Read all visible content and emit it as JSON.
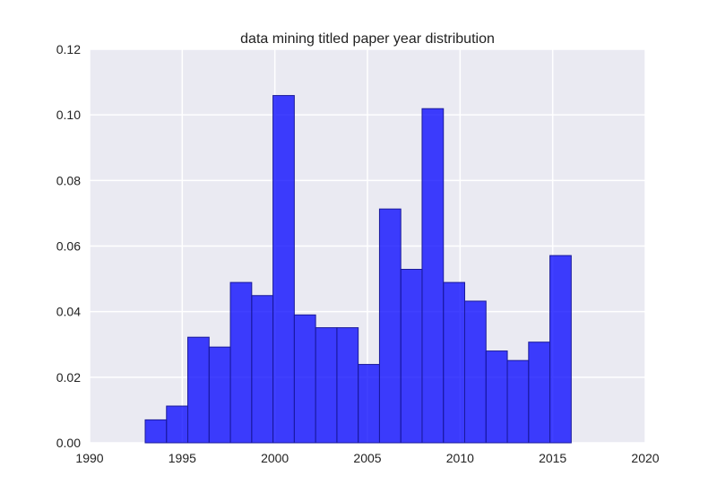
{
  "chart_data": {
    "type": "bar",
    "title": "data mining titled paper year distribution",
    "xlabel": "",
    "ylabel": "",
    "xlim": [
      1990,
      2020
    ],
    "ylim": [
      0,
      0.12
    ],
    "x_ticks": [
      "1990",
      "1995",
      "2000",
      "2005",
      "2010",
      "2015",
      "2020"
    ],
    "y_ticks": [
      "0.00",
      "0.02",
      "0.04",
      "0.06",
      "0.08",
      "0.10",
      "0.12"
    ],
    "grid": true,
    "bin_edges": [
      1993,
      1994.15,
      1995.3,
      1996.45,
      1997.6,
      1998.75,
      1999.9,
      2001.05,
      2002.2,
      2003.35,
      2004.5,
      2005.65,
      2006.8,
      2007.95,
      2009.1,
      2010.25,
      2011.4,
      2012.55,
      2013.7,
      2014.85,
      2016
    ],
    "values": [
      0.007,
      0.0112,
      0.0322,
      0.0292,
      0.0489,
      0.0449,
      0.1059,
      0.039,
      0.0351,
      0.0351,
      0.0239,
      0.0713,
      0.0529,
      0.1019,
      0.0489,
      0.0432,
      0.028,
      0.0251,
      0.0307,
      0.0571
    ],
    "colors": {
      "bar_fill": "#0000ff",
      "bar_opacity": 0.75,
      "bar_edge": "#1a1a9a",
      "plot_bg": "#eaeaf2",
      "grid": "#ffffff"
    }
  }
}
